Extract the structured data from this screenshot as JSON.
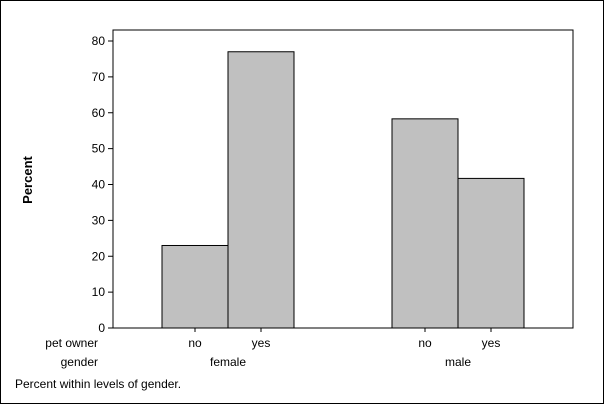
{
  "chart_data": {
    "type": "bar",
    "title": "",
    "ylabel": "Percent",
    "ylim": [
      0,
      80
    ],
    "yticks": [
      0,
      10,
      20,
      30,
      40,
      50,
      60,
      70,
      80
    ],
    "row_labels": {
      "inner": "pet owner",
      "outer": "gender"
    },
    "groups": [
      {
        "name": "female",
        "bars": [
          {
            "category": "no",
            "value": 23
          },
          {
            "category": "yes",
            "value": 77
          }
        ]
      },
      {
        "name": "male",
        "bars": [
          {
            "category": "no",
            "value": 58.3
          },
          {
            "category": "yes",
            "value": 41.7
          }
        ]
      }
    ],
    "footnote": "Percent within levels of gender.",
    "bar_fill": "#c0c0c0",
    "bar_stroke": "#000000",
    "grid": false
  }
}
